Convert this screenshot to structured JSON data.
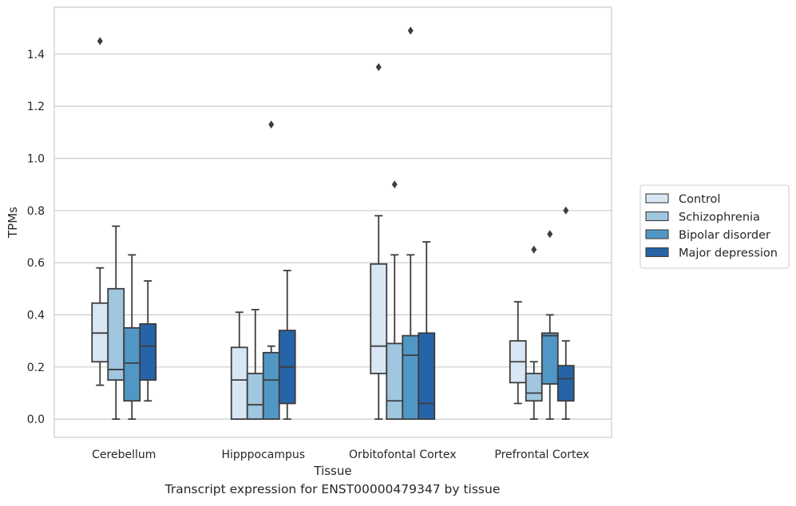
{
  "caption": "Transcript expression for ENST00000479347 by tissue",
  "chart_data": {
    "type": "box",
    "title": "",
    "xlabel": "Tissue",
    "ylabel": "TPMs",
    "categories": [
      "Cerebellum",
      "Hipppocampus",
      "Orbitofontal Cortex",
      "Prefrontal Cortex"
    ],
    "ylim": [
      -0.07,
      1.58
    ],
    "yticks": [
      0.0,
      0.2,
      0.4,
      0.6,
      0.8,
      1.0,
      1.2,
      1.4
    ],
    "ytick_labels": [
      "0.0",
      "0.2",
      "0.4",
      "0.6",
      "0.8",
      "1.0",
      "1.2",
      "1.4"
    ],
    "grid": "horizontal",
    "legend_position": "outside-right",
    "series": [
      {
        "name": "Control",
        "color": "#d9e7f5",
        "boxes": [
          {
            "whisker_low": 0.13,
            "q1": 0.22,
            "median": 0.33,
            "q3": 0.445,
            "whisker_high": 0.58,
            "outliers": [
              1.45
            ]
          },
          {
            "whisker_low": 0.0,
            "q1": 0.0,
            "median": 0.15,
            "q3": 0.275,
            "whisker_high": 0.41,
            "outliers": []
          },
          {
            "whisker_low": 0.0,
            "q1": 0.175,
            "median": 0.28,
            "q3": 0.595,
            "whisker_high": 0.78,
            "outliers": [
              1.35
            ]
          },
          {
            "whisker_low": 0.06,
            "q1": 0.14,
            "median": 0.22,
            "q3": 0.3,
            "whisker_high": 0.45,
            "outliers": []
          }
        ]
      },
      {
        "name": "Schizophrenia",
        "color": "#a0c6e0",
        "boxes": [
          {
            "whisker_low": 0.0,
            "q1": 0.15,
            "median": 0.19,
            "q3": 0.5,
            "whisker_high": 0.74,
            "outliers": []
          },
          {
            "whisker_low": 0.0,
            "q1": 0.0,
            "median": 0.055,
            "q3": 0.175,
            "whisker_high": 0.42,
            "outliers": []
          },
          {
            "whisker_low": 0.0,
            "q1": 0.0,
            "median": 0.07,
            "q3": 0.29,
            "whisker_high": 0.63,
            "outliers": [
              0.9
            ]
          },
          {
            "whisker_low": 0.0,
            "q1": 0.07,
            "median": 0.1,
            "q3": 0.175,
            "whisker_high": 0.22,
            "outliers": [
              0.65
            ]
          }
        ]
      },
      {
        "name": "Bipolar disorder",
        "color": "#5197c6",
        "boxes": [
          {
            "whisker_low": 0.0,
            "q1": 0.07,
            "median": 0.215,
            "q3": 0.35,
            "whisker_high": 0.63,
            "outliers": []
          },
          {
            "whisker_low": 0.0,
            "q1": 0.0,
            "median": 0.15,
            "q3": 0.255,
            "whisker_high": 0.28,
            "outliers": [
              1.13
            ]
          },
          {
            "whisker_low": 0.0,
            "q1": 0.0,
            "median": 0.245,
            "q3": 0.32,
            "whisker_high": 0.63,
            "outliers": [
              1.49
            ]
          },
          {
            "whisker_low": 0.0,
            "q1": 0.135,
            "median": 0.32,
            "q3": 0.33,
            "whisker_high": 0.4,
            "outliers": [
              0.71
            ]
          }
        ]
      },
      {
        "name": "Major depression",
        "color": "#2564a8",
        "boxes": [
          {
            "whisker_low": 0.07,
            "q1": 0.15,
            "median": 0.28,
            "q3": 0.365,
            "whisker_high": 0.53,
            "outliers": []
          },
          {
            "whisker_low": 0.0,
            "q1": 0.06,
            "median": 0.2,
            "q3": 0.34,
            "whisker_high": 0.57,
            "outliers": []
          },
          {
            "whisker_low": 0.0,
            "q1": 0.0,
            "median": 0.06,
            "q3": 0.33,
            "whisker_high": 0.68,
            "outliers": []
          },
          {
            "whisker_low": 0.0,
            "q1": 0.07,
            "median": 0.155,
            "q3": 0.205,
            "whisker_high": 0.3,
            "outliers": [
              0.8
            ]
          }
        ]
      }
    ]
  }
}
